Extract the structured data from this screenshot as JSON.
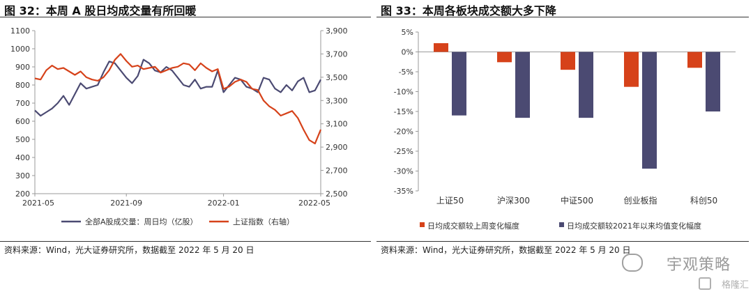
{
  "left": {
    "title": "图 32：本周 A 股日均成交量有所回暖",
    "source": "资料来源：Wind，光大证券研究所，数据截至 2022 年 5 月 20 日"
  },
  "right": {
    "title": "图 33：本周各板块成交额大多下降",
    "source": "资料来源：Wind，光大证券研究所，数据截至 2022 年 5 月 20 日"
  },
  "watermark": {
    "text": "宇观策略",
    "sub": "格隆汇"
  },
  "colors": {
    "series_purple": "#4b4a72",
    "series_red": "#d6421a",
    "axis": "#999999"
  },
  "chart_data": [
    {
      "type": "line",
      "x_ticks": [
        "2021-05",
        "2021-09",
        "2022-01",
        "2022-05"
      ],
      "x_tick_index": [
        0,
        16,
        33,
        50
      ],
      "ylim_left": [
        200,
        1100
      ],
      "yticks_left": [
        "200",
        "300",
        "400",
        "500",
        "600",
        "700",
        "800",
        "900",
        "1000",
        "1100"
      ],
      "ylim_right": [
        2500,
        3900
      ],
      "yticks_right": [
        "2,500",
        "2,700",
        "2,900",
        "3,100",
        "3,300",
        "3,500",
        "3,700",
        "3,900"
      ],
      "grid": false,
      "legend_position": "bottom",
      "series": [
        {
          "name": "全部A股成交量：周日均（亿股）",
          "axis": "left",
          "color": "#4b4a72",
          "values": [
            660,
            630,
            650,
            670,
            700,
            740,
            690,
            750,
            810,
            780,
            790,
            800,
            870,
            930,
            920,
            880,
            840,
            810,
            850,
            940,
            920,
            880,
            870,
            900,
            880,
            840,
            800,
            790,
            830,
            780,
            790,
            790,
            880,
            760,
            800,
            840,
            830,
            790,
            780,
            760,
            840,
            830,
            780,
            760,
            800,
            770,
            820,
            840,
            760,
            770,
            830
          ]
        },
        {
          "name": "上证指数（右轴）",
          "axis": "right",
          "color": "#d6421a",
          "values": [
            3490,
            3480,
            3560,
            3600,
            3570,
            3580,
            3550,
            3520,
            3550,
            3500,
            3480,
            3470,
            3500,
            3560,
            3650,
            3700,
            3640,
            3590,
            3600,
            3570,
            3580,
            3590,
            3540,
            3560,
            3580,
            3590,
            3620,
            3610,
            3560,
            3620,
            3580,
            3550,
            3570,
            3400,
            3420,
            3460,
            3480,
            3460,
            3400,
            3390,
            3300,
            3250,
            3220,
            3170,
            3190,
            3210,
            3150,
            3050,
            2960,
            2930,
            3050
          ]
        }
      ]
    },
    {
      "type": "bar",
      "categories": [
        "上证50",
        "沪深300",
        "中证500",
        "创业板指",
        "科创50"
      ],
      "ylim": [
        -35,
        5
      ],
      "yticks": [
        "-35%",
        "-30%",
        "-25%",
        "-20%",
        "-15%",
        "-10%",
        "-5%",
        "0%",
        "5%"
      ],
      "legend_position": "bottom",
      "series": [
        {
          "name": "日均成交额较上周变化幅度",
          "color": "#d6421a",
          "values": [
            2.2,
            -2.6,
            -4.5,
            -8.8,
            -4.0
          ]
        },
        {
          "name": "日均成交额较2021年以来均值变化幅度",
          "color": "#4b4a72",
          "values": [
            -16.0,
            -16.6,
            -16.6,
            -29.4,
            -15.0
          ]
        }
      ]
    }
  ]
}
